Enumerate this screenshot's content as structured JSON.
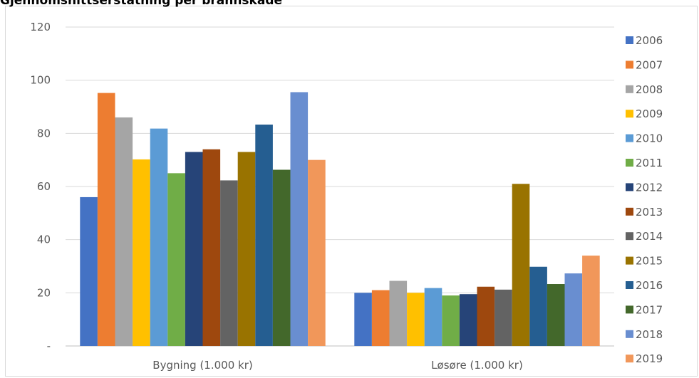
{
  "chart_data": {
    "type": "bar",
    "title": "Gjennomsnittserstatning per brannskade",
    "categories": [
      "Bygning (1.000 kr)",
      "Løsøre (1.000 kr)"
    ],
    "y_ticks": [
      "-",
      "20",
      "40",
      "60",
      "80",
      "100",
      "120"
    ],
    "ylim": [
      0,
      120
    ],
    "grid": true,
    "legend_position": "right",
    "series": [
      {
        "name": "2006",
        "color": "#4472c4",
        "values": [
          56,
          20
        ]
      },
      {
        "name": "2007",
        "color": "#ed7d31",
        "values": [
          95.2,
          21
        ]
      },
      {
        "name": "2008",
        "color": "#a5a5a5",
        "values": [
          86,
          24.5
        ]
      },
      {
        "name": "2009",
        "color": "#ffc000",
        "values": [
          70.2,
          20
        ]
      },
      {
        "name": "2010",
        "color": "#5b9bd5",
        "values": [
          81.8,
          21.8
        ]
      },
      {
        "name": "2011",
        "color": "#70ad47",
        "values": [
          65,
          19
        ]
      },
      {
        "name": "2012",
        "color": "#264478",
        "values": [
          73,
          19.5
        ]
      },
      {
        "name": "2013",
        "color": "#9e480e",
        "values": [
          74,
          22.3
        ]
      },
      {
        "name": "2014",
        "color": "#636363",
        "values": [
          62.3,
          21.2
        ]
      },
      {
        "name": "2015",
        "color": "#997300",
        "values": [
          73,
          61
        ]
      },
      {
        "name": "2016",
        "color": "#255e91",
        "values": [
          83.3,
          29.8
        ]
      },
      {
        "name": "2017",
        "color": "#43682b",
        "values": [
          66.3,
          23.3
        ]
      },
      {
        "name": "2018",
        "color": "#698ed0",
        "values": [
          95.5,
          27.3
        ]
      },
      {
        "name": "2019",
        "color": "#f1975a",
        "values": [
          70,
          34
        ]
      }
    ]
  }
}
